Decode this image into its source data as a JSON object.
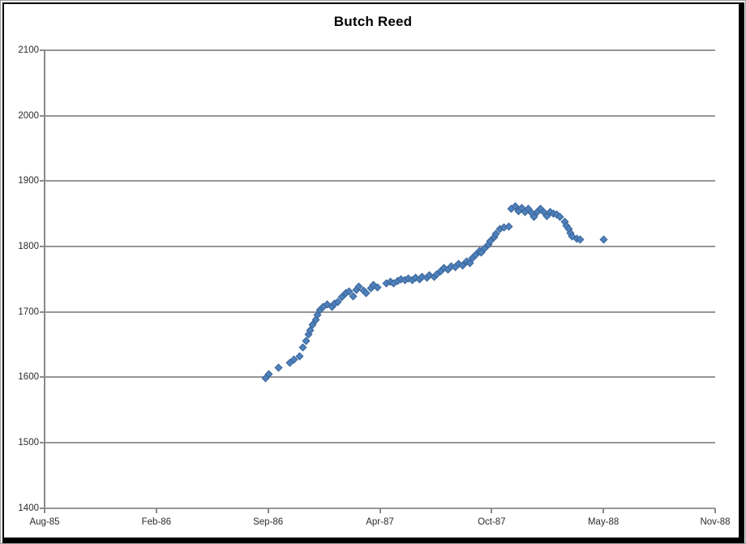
{
  "window": {
    "background": "#FFFFFF",
    "frame_border_color": "#000000",
    "gridline_color": "#969696",
    "label_color": "#2B2B2B"
  },
  "chart_data": {
    "type": "scatter",
    "title": "Butch Reed",
    "legend_position": "none",
    "grid": "horizontal",
    "marker": {
      "shape": "diamond",
      "color": "#4F81BD",
      "edge_color": "#3A6598"
    },
    "x_axis": {
      "kind": "date",
      "start_date": "1985-08-01",
      "end_date": "1988-11-01",
      "tick_labels": [
        "Aug-85",
        "Feb-86",
        "Sep-86",
        "Apr-87",
        "Oct-87",
        "May-88",
        "Nov-88"
      ]
    },
    "y_axis": {
      "min": 1400,
      "max": 2100,
      "step": 100,
      "tick_labels": [
        "2100",
        "2000",
        "1900",
        "1800",
        "1700",
        "1600",
        "1500",
        "1400"
      ]
    },
    "points": [
      [
        "1986-08-28",
        1598
      ],
      [
        "1986-09-02",
        1604
      ],
      [
        "1986-09-19",
        1615
      ],
      [
        "1986-10-10",
        1622
      ],
      [
        "1986-10-17",
        1627
      ],
      [
        "1986-10-27",
        1632
      ],
      [
        "1986-11-02",
        1646
      ],
      [
        "1986-11-07",
        1656
      ],
      [
        "1986-11-11",
        1665
      ],
      [
        "1986-11-15",
        1672
      ],
      [
        "1986-11-19",
        1680
      ],
      [
        "1986-11-24",
        1688
      ],
      [
        "1986-11-27",
        1695
      ],
      [
        "1986-12-01",
        1702
      ],
      [
        "1986-12-08",
        1707
      ],
      [
        "1986-12-15",
        1711
      ],
      [
        "1986-12-23",
        1708
      ],
      [
        "1986-12-28",
        1712
      ],
      [
        "1987-01-03",
        1715
      ],
      [
        "1987-01-10",
        1722
      ],
      [
        "1987-01-17",
        1728
      ],
      [
        "1987-01-23",
        1731
      ],
      [
        "1987-01-29",
        1724
      ],
      [
        "1987-02-04",
        1734
      ],
      [
        "1987-02-09",
        1739
      ],
      [
        "1987-02-17",
        1732
      ],
      [
        "1987-02-22",
        1729
      ],
      [
        "1987-03-02",
        1736
      ],
      [
        "1987-03-07",
        1741
      ],
      [
        "1987-03-14",
        1737
      ],
      [
        "1987-03-30",
        1743
      ],
      [
        "1987-04-05",
        1746
      ],
      [
        "1987-04-12",
        1744
      ],
      [
        "1987-04-18",
        1747
      ],
      [
        "1987-04-24",
        1750
      ],
      [
        "1987-05-01",
        1748
      ],
      [
        "1987-05-07",
        1751
      ],
      [
        "1987-05-14",
        1749
      ],
      [
        "1987-05-20",
        1752
      ],
      [
        "1987-05-27",
        1750
      ],
      [
        "1987-06-01",
        1754
      ],
      [
        "1987-06-09",
        1752
      ],
      [
        "1987-06-14",
        1756
      ],
      [
        "1987-06-22",
        1754
      ],
      [
        "1987-06-27",
        1757
      ],
      [
        "1987-07-04",
        1762
      ],
      [
        "1987-07-10",
        1767
      ],
      [
        "1987-07-17",
        1764
      ],
      [
        "1987-07-23",
        1770
      ],
      [
        "1987-07-29",
        1768
      ],
      [
        "1987-08-05",
        1773
      ],
      [
        "1987-08-11",
        1771
      ],
      [
        "1987-08-18",
        1777
      ],
      [
        "1987-08-24",
        1774
      ],
      [
        "1987-08-29",
        1782
      ],
      [
        "1987-09-04",
        1787
      ],
      [
        "1987-09-10",
        1793
      ],
      [
        "1987-09-14",
        1790
      ],
      [
        "1987-09-20",
        1797
      ],
      [
        "1987-09-26",
        1803
      ],
      [
        "1987-09-30",
        1808
      ],
      [
        "1987-10-06",
        1814
      ],
      [
        "1987-10-10",
        1819
      ],
      [
        "1987-10-17",
        1826
      ],
      [
        "1987-10-24",
        1829
      ],
      [
        "1987-11-01",
        1830
      ],
      [
        "1987-11-05",
        1858
      ],
      [
        "1987-11-13",
        1861
      ],
      [
        "1987-11-19",
        1854
      ],
      [
        "1987-11-25",
        1859
      ],
      [
        "1987-11-30",
        1853
      ],
      [
        "1987-12-06",
        1857
      ],
      [
        "1987-12-12",
        1851
      ],
      [
        "1987-12-16",
        1845
      ],
      [
        "1987-12-22",
        1852
      ],
      [
        "1987-12-28",
        1857
      ],
      [
        "1988-01-02",
        1852
      ],
      [
        "1988-01-08",
        1847
      ],
      [
        "1988-01-14",
        1853
      ],
      [
        "1988-01-20",
        1850
      ],
      [
        "1988-01-25",
        1849
      ],
      [
        "1988-01-31",
        1845
      ],
      [
        "1988-02-08",
        1838
      ],
      [
        "1988-02-11",
        1832
      ],
      [
        "1988-02-15",
        1826
      ],
      [
        "1988-02-18",
        1820
      ],
      [
        "1988-02-22",
        1815
      ],
      [
        "1988-03-01",
        1812
      ],
      [
        "1988-03-07",
        1810
      ],
      [
        "1988-04-18",
        1811
      ]
    ]
  }
}
